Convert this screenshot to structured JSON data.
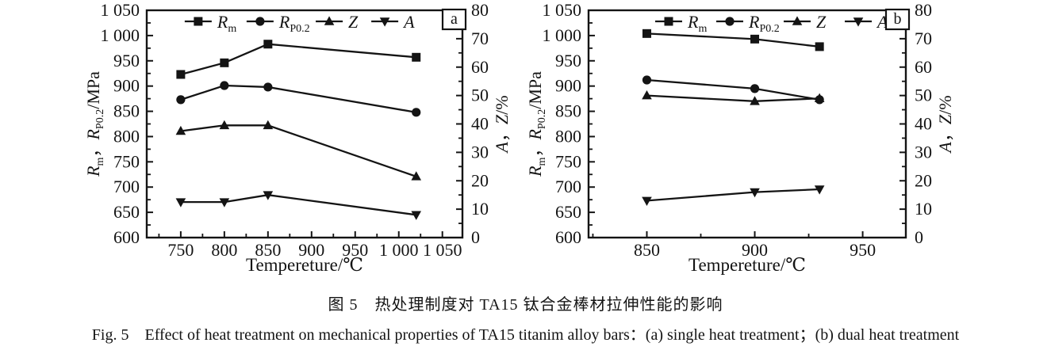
{
  "page": {
    "background": "#ffffff",
    "ink": "#141414"
  },
  "captions": {
    "zh": "图 5　热处理制度对 TA15 钛合金棒材拉伸性能的影响",
    "en": "Fig. 5　Effect of heat treatment on mechanical properties of TA15 titanim alloy bars：(a) single heat treatment；(b) dual heat treatment"
  },
  "chart_data": [
    {
      "type": "line",
      "panel_label": "a",
      "xlabel": "Tempereture/℃",
      "ylabel_left": "Rm，RP0.2/MPa",
      "ylabel_right": "A，Z/%",
      "ylabel_left_parts": [
        {
          "t": "R",
          "style": "it"
        },
        {
          "t": "m",
          "style": "sub"
        },
        {
          "t": "，",
          "style": "n"
        },
        {
          "t": "R",
          "style": "it"
        },
        {
          "t": "P0.2",
          "style": "sub"
        },
        {
          "t": "/MPa",
          "style": "n"
        }
      ],
      "ylabel_right_parts": [
        {
          "t": "A",
          "style": "it"
        },
        {
          "t": "，",
          "style": "n"
        },
        {
          "t": "Z",
          "style": "it"
        },
        {
          "t": "/%",
          "style": "n"
        }
      ],
      "xlim": [
        711,
        1073
      ],
      "ylim_left": [
        600,
        1050
      ],
      "ylim_right": [
        0,
        80
      ],
      "grid": false,
      "legend_position": "top-inside",
      "x_major_ticks": [
        {
          "v": 750,
          "label": "750"
        },
        {
          "v": 800,
          "label": "800"
        },
        {
          "v": 850,
          "label": "850"
        },
        {
          "v": 900,
          "label": "900"
        },
        {
          "v": 950,
          "label": "950"
        },
        {
          "v": 1000,
          "label": "1 000"
        },
        {
          "v": 1050,
          "label": "1 050"
        }
      ],
      "x_minor_step": 25,
      "y_left_major_ticks": [
        {
          "v": 600,
          "label": "600"
        },
        {
          "v": 650,
          "label": "650"
        },
        {
          "v": 700,
          "label": "700"
        },
        {
          "v": 750,
          "label": "750"
        },
        {
          "v": 800,
          "label": "800"
        },
        {
          "v": 850,
          "label": "850"
        },
        {
          "v": 900,
          "label": "900"
        },
        {
          "v": 950,
          "label": "950"
        },
        {
          "v": 1000,
          "label": "1 000"
        },
        {
          "v": 1050,
          "label": "1 050"
        }
      ],
      "y_left_minor_step": 25,
      "y_right_major_ticks": [
        {
          "v": 0,
          "label": "0"
        },
        {
          "v": 10,
          "label": "10"
        },
        {
          "v": 20,
          "label": "20"
        },
        {
          "v": 30,
          "label": "30"
        },
        {
          "v": 40,
          "label": "40"
        },
        {
          "v": 50,
          "label": "50"
        },
        {
          "v": 60,
          "label": "60"
        },
        {
          "v": 70,
          "label": "70"
        },
        {
          "v": 80,
          "label": "80"
        }
      ],
      "y_right_minor_step": 5,
      "series": [
        {
          "name": "Rm",
          "label_main": "R",
          "label_sub": "m",
          "marker": "square",
          "axis": "left",
          "x": [
            750,
            800,
            850,
            1020
          ],
          "y": [
            923,
            946,
            983,
            957
          ]
        },
        {
          "name": "RP02",
          "label_main": "R",
          "label_sub": "P0.2",
          "marker": "circle",
          "axis": "left",
          "x": [
            750,
            800,
            850,
            1020
          ],
          "y": [
            873,
            901,
            898,
            848
          ]
        },
        {
          "name": "Z",
          "label_main": "Z",
          "label_sub": "",
          "marker": "triangle-up",
          "axis": "right",
          "x": [
            750,
            800,
            850,
            1020
          ],
          "y": [
            37.5,
            39.5,
            39.5,
            21.5
          ]
        },
        {
          "name": "A",
          "label_main": "A",
          "label_sub": "",
          "marker": "triangle-down",
          "axis": "right",
          "x": [
            750,
            800,
            850,
            1020
          ],
          "y": [
            12.5,
            12.5,
            15,
            8
          ]
        }
      ]
    },
    {
      "type": "line",
      "panel_label": "b",
      "xlabel": "Tempereture/℃",
      "ylabel_left": "Rm，RP0.2/MPa",
      "ylabel_right": "A，Z/%",
      "ylabel_left_parts": [
        {
          "t": "R",
          "style": "it"
        },
        {
          "t": "m",
          "style": "sub"
        },
        {
          "t": "，",
          "style": "n"
        },
        {
          "t": "R",
          "style": "it"
        },
        {
          "t": "P0.2",
          "style": "sub"
        },
        {
          "t": "/MPa",
          "style": "n"
        }
      ],
      "ylabel_right_parts": [
        {
          "t": "A",
          "style": "it"
        },
        {
          "t": "，",
          "style": "n"
        },
        {
          "t": "Z",
          "style": "it"
        },
        {
          "t": "/%",
          "style": "n"
        }
      ],
      "xlim": [
        823,
        970
      ],
      "ylim_left": [
        600,
        1050
      ],
      "ylim_right": [
        0,
        80
      ],
      "grid": false,
      "legend_position": "top-inside",
      "x_major_ticks": [
        {
          "v": 850,
          "label": "850"
        },
        {
          "v": 900,
          "label": "900"
        },
        {
          "v": 950,
          "label": "950"
        }
      ],
      "x_minor_step": 25,
      "y_left_major_ticks": [
        {
          "v": 600,
          "label": "600"
        },
        {
          "v": 650,
          "label": "650"
        },
        {
          "v": 700,
          "label": "700"
        },
        {
          "v": 750,
          "label": "750"
        },
        {
          "v": 800,
          "label": "800"
        },
        {
          "v": 850,
          "label": "850"
        },
        {
          "v": 900,
          "label": "900"
        },
        {
          "v": 950,
          "label": "950"
        },
        {
          "v": 1000,
          "label": "1 000"
        },
        {
          "v": 1050,
          "label": "1 050"
        }
      ],
      "y_left_minor_step": 25,
      "y_right_major_ticks": [
        {
          "v": 0,
          "label": "0"
        },
        {
          "v": 10,
          "label": "10"
        },
        {
          "v": 20,
          "label": "20"
        },
        {
          "v": 30,
          "label": "30"
        },
        {
          "v": 40,
          "label": "40"
        },
        {
          "v": 50,
          "label": "50"
        },
        {
          "v": 60,
          "label": "60"
        },
        {
          "v": 70,
          "label": "70"
        },
        {
          "v": 80,
          "label": "80"
        }
      ],
      "y_right_minor_step": 5,
      "series": [
        {
          "name": "Rm",
          "label_main": "R",
          "label_sub": "m",
          "marker": "square",
          "axis": "left",
          "x": [
            850,
            900,
            930
          ],
          "y": [
            1004,
            993,
            978
          ]
        },
        {
          "name": "RP02",
          "label_main": "R",
          "label_sub": "P0.2",
          "marker": "circle",
          "axis": "left",
          "x": [
            850,
            900,
            930
          ],
          "y": [
            912,
            895,
            873
          ]
        },
        {
          "name": "Z",
          "label_main": "Z",
          "label_sub": "",
          "marker": "triangle-up",
          "axis": "right",
          "x": [
            850,
            900,
            930
          ],
          "y": [
            50,
            48,
            49
          ]
        },
        {
          "name": "A",
          "label_main": "A",
          "label_sub": "",
          "marker": "triangle-down",
          "axis": "right",
          "x": [
            850,
            900,
            930
          ],
          "y": [
            13,
            16,
            17
          ]
        }
      ]
    }
  ]
}
